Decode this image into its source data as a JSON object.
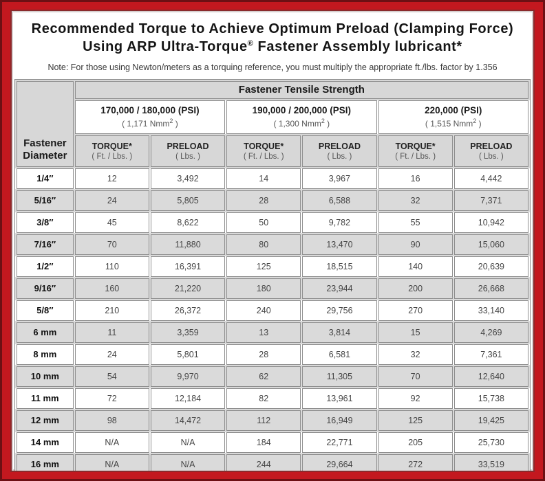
{
  "colors": {
    "frame_red": "#c3181f",
    "frame_dark": "#6d1014",
    "cell_gray": "#d7d7d7",
    "row_gray": "#dadada",
    "border_gray": "#8e8e8e"
  },
  "header": {
    "title_line1": "Recommended Torque to Achieve Optimum Preload (Clamping Force)",
    "title_line2_pre": "Using ARP Ultra-Torque",
    "title_line2_sup": "®",
    "title_line2_post": " Fastener Assembly lubricant*",
    "note": "Note: For those using Newton/meters as a torquing reference, you must multiply the appropriate ft./lbs. factor by 1.356"
  },
  "table": {
    "corner_line1": "Fastener",
    "corner_line2": "Diameter",
    "tensile_header": "Fastener Tensile Strength",
    "psi_groups": [
      {
        "psi": "170,000 / 180,000 (PSI)",
        "nmm_pre": "( 1,171 Nmm",
        "nmm_sup": "2",
        "nmm_post": " )"
      },
      {
        "psi": "190,000 / 200,000 (PSI)",
        "nmm_pre": "( 1,300 Nmm",
        "nmm_sup": "2",
        "nmm_post": " )"
      },
      {
        "psi": "220,000 (PSI)",
        "nmm_pre": "( 1,515 Nmm",
        "nmm_sup": "2",
        "nmm_post": " )"
      }
    ],
    "sub_headers": [
      {
        "label": "TORQUE*",
        "unit": "( Ft. / Lbs. )"
      },
      {
        "label": "PRELOAD",
        "unit": "( Lbs. )"
      },
      {
        "label": "TORQUE*",
        "unit": "( Ft. / Lbs. )"
      },
      {
        "label": "PRELOAD",
        "unit": "( Lbs. )"
      },
      {
        "label": "TORQUE*",
        "unit": "( Ft. / Lbs. )"
      },
      {
        "label": "PRELOAD",
        "unit": "( Lbs. )"
      }
    ],
    "rows": [
      {
        "diameter": "1/4″",
        "values": [
          "12",
          "3,492",
          "14",
          "3,967",
          "16",
          "4,442"
        ]
      },
      {
        "diameter": "5/16″",
        "values": [
          "24",
          "5,805",
          "28",
          "6,588",
          "32",
          "7,371"
        ]
      },
      {
        "diameter": "3/8″",
        "values": [
          "45",
          "8,622",
          "50",
          "9,782",
          "55",
          "10,942"
        ]
      },
      {
        "diameter": "7/16″",
        "values": [
          "70",
          "11,880",
          "80",
          "13,470",
          "90",
          "15,060"
        ]
      },
      {
        "diameter": "1/2″",
        "values": [
          "110",
          "16,391",
          "125",
          "18,515",
          "140",
          "20,639"
        ]
      },
      {
        "diameter": "9/16″",
        "values": [
          "160",
          "21,220",
          "180",
          "23,944",
          "200",
          "26,668"
        ]
      },
      {
        "diameter": "5/8″",
        "values": [
          "210",
          "26,372",
          "240",
          "29,756",
          "270",
          "33,140"
        ]
      },
      {
        "diameter": "6 mm",
        "values": [
          "11",
          "3,359",
          "13",
          "3,814",
          "15",
          "4,269"
        ]
      },
      {
        "diameter": "8 mm",
        "values": [
          "24",
          "5,801",
          "28",
          "6,581",
          "32",
          "7,361"
        ]
      },
      {
        "diameter": "10 mm",
        "values": [
          "54",
          "9,970",
          "62",
          "11,305",
          "70",
          "12,640"
        ]
      },
      {
        "diameter": "11 mm",
        "values": [
          "72",
          "12,184",
          "82",
          "13,961",
          "92",
          "15,738"
        ]
      },
      {
        "diameter": "12 mm",
        "values": [
          "98",
          "14,472",
          "112",
          "16,949",
          "125",
          "19,425"
        ]
      },
      {
        "diameter": "14 mm",
        "values": [
          "N/A",
          "N/A",
          "184",
          "22,771",
          "205",
          "25,730"
        ]
      },
      {
        "diameter": "16 mm",
        "values": [
          "N/A",
          "N/A",
          "244",
          "29,664",
          "272",
          "33,519"
        ]
      }
    ]
  }
}
